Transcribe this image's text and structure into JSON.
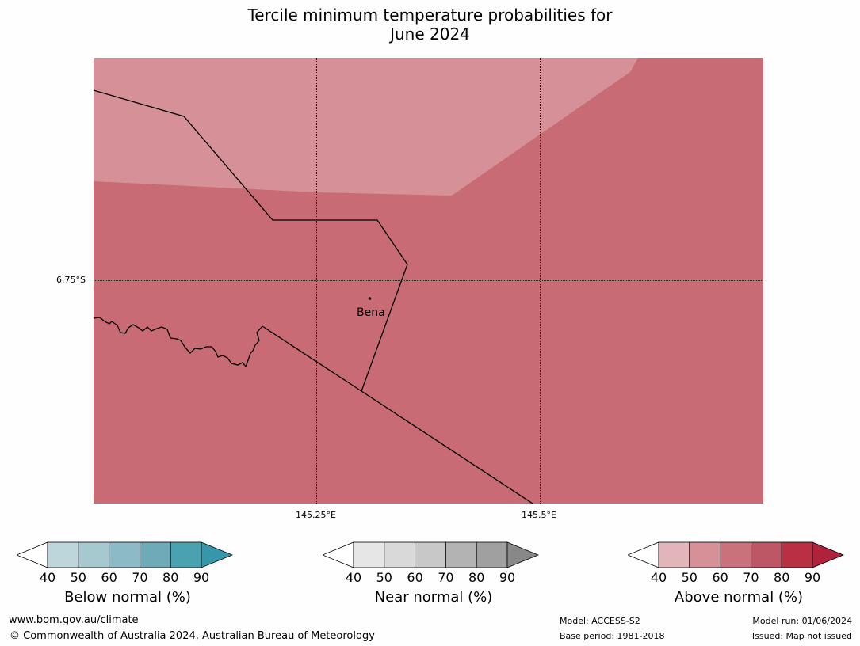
{
  "title": {
    "line1": "Tercile minimum temperature probabilities for",
    "line2": "June 2024"
  },
  "map": {
    "lat_label": "6.75°S",
    "lon_labels": [
      "145.25°E",
      "145.5°E"
    ],
    "place": "Bena",
    "colors": {
      "light_above": "#d69097",
      "mid_above": "#c96b74",
      "boundary": "#000000"
    }
  },
  "legends": [
    {
      "title": "Below normal (%)",
      "ticks": [
        "40",
        "50",
        "60",
        "70",
        "80",
        "90"
      ],
      "colors": [
        "#ffffff",
        "#bdd6dc",
        "#a6c9d0",
        "#8cbac6",
        "#6eaab8",
        "#4aa1b0",
        "#3597a9"
      ]
    },
    {
      "title": "Near normal (%)",
      "ticks": [
        "40",
        "50",
        "60",
        "70",
        "80",
        "90"
      ],
      "colors": [
        "#ffffff",
        "#e6e6e6",
        "#d9d9d9",
        "#c8c8c8",
        "#b3b3b3",
        "#a0a0a0",
        "#888888"
      ]
    },
    {
      "title": "Above normal (%)",
      "ticks": [
        "40",
        "50",
        "60",
        "70",
        "80",
        "90"
      ],
      "colors": [
        "#ffffff",
        "#e2b5bb",
        "#d69097",
        "#c9727b",
        "#bd5766",
        "#b93043",
        "#b0213b"
      ]
    }
  ],
  "footer": {
    "url": "www.bom.gov.au/climate",
    "copyright": "© Commonwealth of Australia 2024, Australian Bureau of Meteorology",
    "model": "Model: ACCESS-S2",
    "base_period": "Base period: 1981-2018",
    "model_run": "Model run: 01/06/2024",
    "issued": "Issued: Map not issued"
  }
}
